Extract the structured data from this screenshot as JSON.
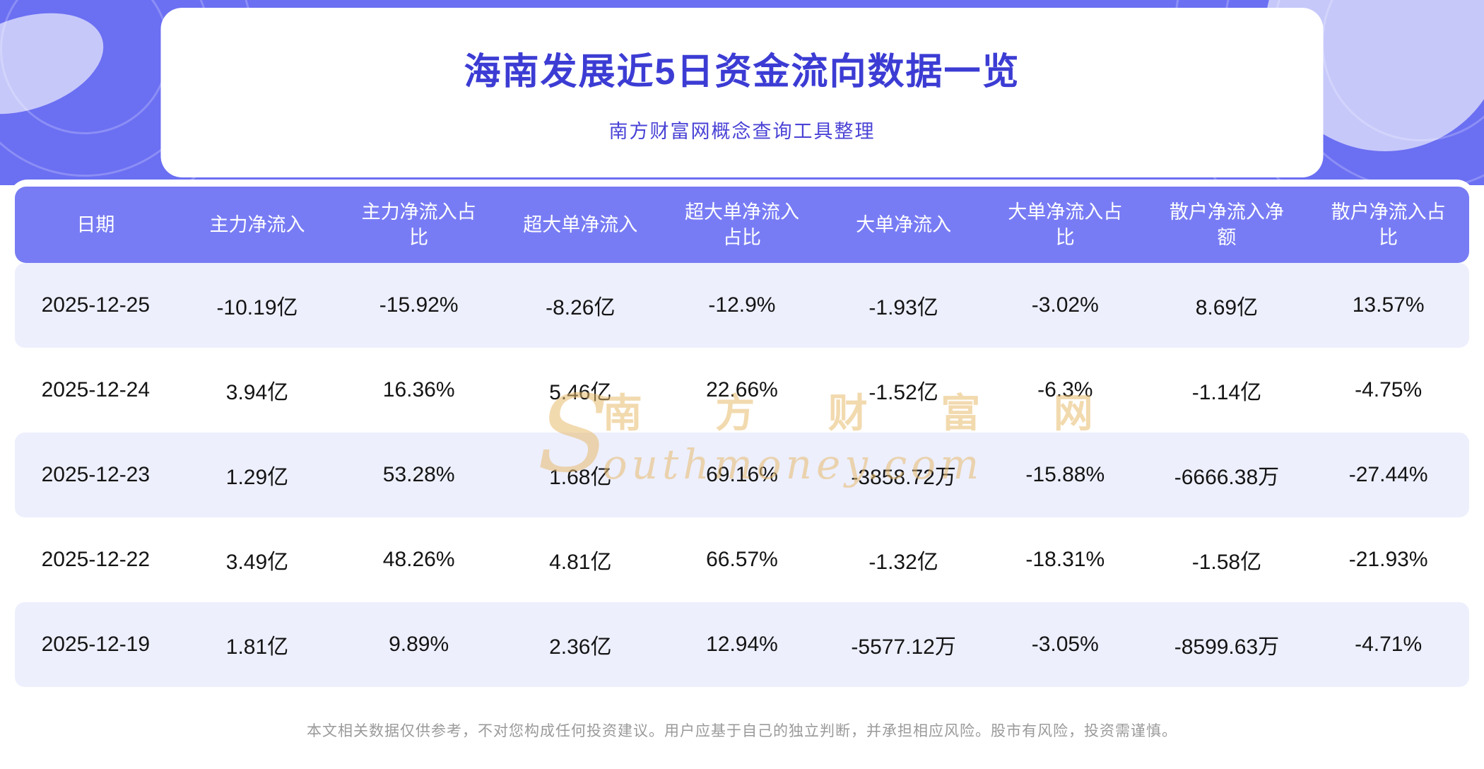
{
  "header": {
    "title": "海南发展近5日资金流向数据一览",
    "subtitle": "南方财富网概念查询工具整理"
  },
  "chart_data": {
    "type": "table",
    "title": "海南发展近5日资金流向数据一览",
    "columns": [
      "日期",
      "主力净流入",
      "主力净流入占比",
      "超大单净流入",
      "超大单净流入占比",
      "大单净流入",
      "大单净流入占比",
      "散户净流入净额",
      "散户净流入占比"
    ],
    "rows": [
      [
        "2025-12-25",
        "-10.19亿",
        "-15.92%",
        "-8.26亿",
        "-12.9%",
        "-1.93亿",
        "-3.02%",
        "8.69亿",
        "13.57%"
      ],
      [
        "2025-12-24",
        "3.94亿",
        "16.36%",
        "5.46亿",
        "22.66%",
        "-1.52亿",
        "-6.3%",
        "-1.14亿",
        "-4.75%"
      ],
      [
        "2025-12-23",
        "1.29亿",
        "53.28%",
        "1.68亿",
        "69.16%",
        "-3858.72万",
        "-15.88%",
        "-6666.38万",
        "-27.44%"
      ],
      [
        "2025-12-22",
        "3.49亿",
        "48.26%",
        "4.81亿",
        "66.57%",
        "-1.32亿",
        "-18.31%",
        "-1.58亿",
        "-21.93%"
      ],
      [
        "2025-12-19",
        "1.81亿",
        "9.89%",
        "2.36亿",
        "12.94%",
        "-5577.12万",
        "-3.05%",
        "-8599.63万",
        "-4.71%"
      ]
    ]
  },
  "watermark": {
    "initial": "S",
    "zh": "南 方 财 富 网",
    "en": "outhmoney.com"
  },
  "footer": {
    "disclaimer": "本文相关数据仅供参考，不对您构成任何投资建议。用户应基于自己的独立判断，并承担相应风险。股市有风险，投资需谨慎。"
  },
  "colors": {
    "banner_bg": "#6b6ff2",
    "title_text": "#3c3cd4",
    "subtitle_text": "#4a43d6",
    "table_header_bg": "#787cf4",
    "row_alt_bg": "#edeffd",
    "watermark_text": "#e8bc6e",
    "disclaimer_text": "#9a9a9a"
  }
}
